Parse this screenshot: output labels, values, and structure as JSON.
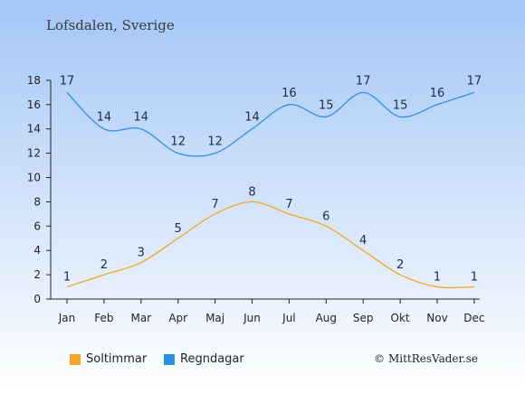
{
  "chart_data": {
    "type": "line",
    "title": "Lofsdalen, Sverige",
    "categories": [
      "Jan",
      "Feb",
      "Mar",
      "Apr",
      "Maj",
      "Jun",
      "Jul",
      "Aug",
      "Sep",
      "Okt",
      "Nov",
      "Dec"
    ],
    "series": [
      {
        "name": "Soltimmar",
        "color": "#f5a623",
        "values": [
          1,
          2,
          3,
          5,
          7,
          8,
          7,
          6,
          4,
          2,
          1,
          1
        ]
      },
      {
        "name": "Regndagar",
        "color": "#2f8fe8",
        "values": [
          17,
          14,
          14,
          12,
          12,
          14,
          16,
          15,
          17,
          15,
          16,
          17
        ]
      }
    ],
    "ylim": [
      0,
      18
    ],
    "yticks": [
      0,
      2,
      4,
      6,
      8,
      10,
      12,
      14,
      16,
      18
    ],
    "grid": false,
    "legend_position": "bottom-left"
  },
  "copyright": "© MittResVader.se"
}
